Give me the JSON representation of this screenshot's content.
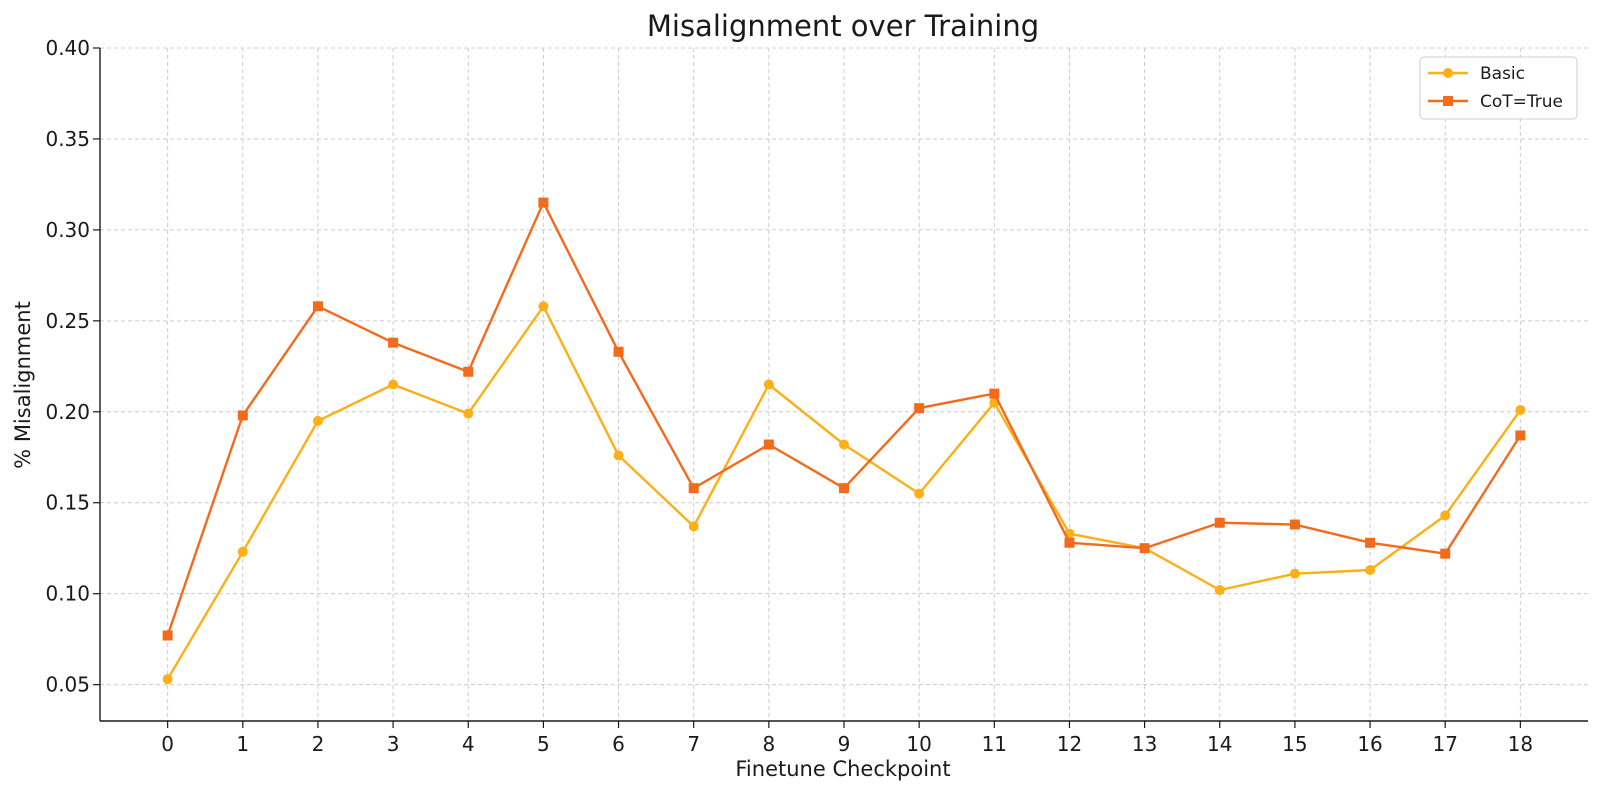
{
  "chart_data": {
    "type": "line",
    "title": "Misalignment over Training",
    "xlabel": "Finetune Checkpoint",
    "ylabel": "% Misalignment",
    "x": [
      0,
      1,
      2,
      3,
      4,
      5,
      6,
      7,
      8,
      9,
      10,
      11,
      12,
      13,
      14,
      15,
      16,
      17,
      18
    ],
    "xlim": [
      -0.9,
      18.9
    ],
    "ylim": [
      0.03,
      0.4
    ],
    "yticks": [
      0.05,
      0.1,
      0.15,
      0.2,
      0.25,
      0.3,
      0.35,
      0.4
    ],
    "ytick_labels": [
      "0.05",
      "0.10",
      "0.15",
      "0.20",
      "0.25",
      "0.30",
      "0.35",
      "0.40"
    ],
    "grid": true,
    "legend_position": "top-right",
    "series": [
      {
        "name": "Basic",
        "color": "#fbaf18",
        "marker": "circle",
        "values": [
          0.053,
          0.123,
          0.195,
          0.215,
          0.199,
          0.258,
          0.176,
          0.137,
          0.215,
          0.182,
          0.155,
          0.205,
          0.133,
          0.125,
          0.102,
          0.111,
          0.113,
          0.143,
          0.201
        ]
      },
      {
        "name": "CoT=True",
        "color": "#f26b1d",
        "marker": "square",
        "values": [
          0.077,
          0.198,
          0.258,
          0.238,
          0.222,
          0.315,
          0.233,
          0.158,
          0.182,
          0.158,
          0.202,
          0.21,
          0.128,
          0.125,
          0.139,
          0.138,
          0.128,
          0.122,
          0.187
        ]
      }
    ]
  }
}
